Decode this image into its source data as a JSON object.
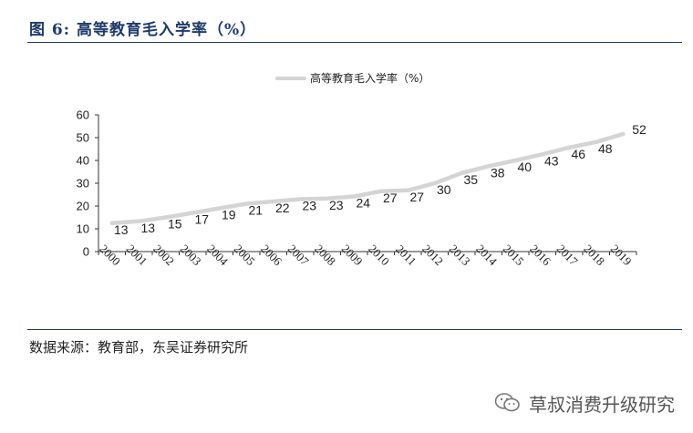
{
  "figure": {
    "title": "图 6:  高等教育毛入学率（%）",
    "source": "数据来源：教育部，东吴证券研究所"
  },
  "watermark": {
    "text": "草叔消费升级研究",
    "icon": "wechat-icon"
  },
  "colors": {
    "line": "#d4d4d4",
    "axis": "#333333",
    "rule": "#1f3a6b"
  },
  "chart_data": {
    "type": "line",
    "x": [
      "2000",
      "2001",
      "2002",
      "2003",
      "2004",
      "2005",
      "2006",
      "2007",
      "2008",
      "2009",
      "2010",
      "2011",
      "2012",
      "2013",
      "2014",
      "2015",
      "2016",
      "2017",
      "2018",
      "2019"
    ],
    "series": [
      {
        "name": "高等教育毛入学率（%）",
        "values": [
          12.5,
          13.3,
          15.0,
          17.0,
          19.0,
          21.0,
          22.0,
          23.0,
          23.3,
          24.2,
          26.5,
          26.9,
          30.0,
          34.5,
          37.5,
          40.0,
          42.7,
          45.7,
          48.1,
          51.6
        ],
        "labels": [
          "13",
          "13",
          "15",
          "17",
          "19",
          "21",
          "22",
          "23",
          "23",
          "24",
          "27",
          "27",
          "30",
          "35",
          "38",
          "40",
          "43",
          "46",
          "48",
          "52"
        ]
      }
    ],
    "y_ticks": [
      "0",
      "10",
      "20",
      "30",
      "40",
      "50",
      "60"
    ],
    "ylim": [
      0,
      60
    ],
    "legend": "top-center",
    "grid": false
  }
}
